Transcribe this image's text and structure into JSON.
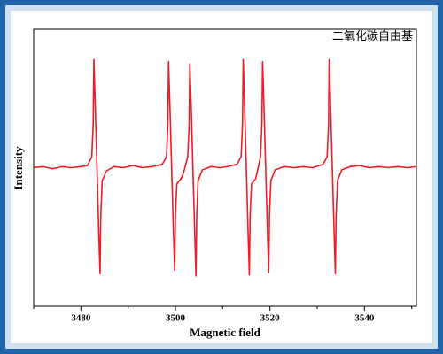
{
  "chart_data": {
    "type": "line",
    "xlabel": "Magnetic field",
    "ylabel": "Intensity",
    "annotation": "二氧化碳自由基",
    "xlim": [
      3470,
      3551
    ],
    "ylim": [
      -1.28,
      1.28
    ],
    "xticks": [
      3480,
      3500,
      3520,
      3540
    ],
    "xminorticks": [
      3470,
      3490,
      3510,
      3530,
      3550
    ],
    "series": [
      {
        "color": "#ee1c25",
        "x": [
          3470,
          3472,
          3474,
          3476,
          3478,
          3480,
          3481.4,
          3482.3,
          3482.6,
          3482.75,
          3483.05,
          3483.4,
          3483.75,
          3484.05,
          3484.2,
          3484.5,
          3485.4,
          3487,
          3489,
          3491,
          3493,
          3495,
          3497.2,
          3498.1,
          3498.4,
          3498.55,
          3498.85,
          3499.2,
          3499.55,
          3499.85,
          3500.0,
          3500.3,
          3501.2,
          3501.7,
          3502.6,
          3502.9,
          3503.05,
          3503.35,
          3503.7,
          3504.05,
          3504.35,
          3504.5,
          3504.8,
          3505.7,
          3507.5,
          3509.5,
          3511,
          3513.0,
          3513.9,
          3514.2,
          3514.35,
          3514.65,
          3515.0,
          3515.35,
          3515.65,
          3515.8,
          3516.1,
          3517.0,
          3518.0,
          3518.3,
          3518.45,
          3518.75,
          3519.1,
          3519.45,
          3519.75,
          3519.9,
          3520.2,
          3521.1,
          3523,
          3525,
          3527,
          3529,
          3531.2,
          3532.1,
          3532.4,
          3532.55,
          3532.85,
          3533.2,
          3533.55,
          3533.85,
          3534.0,
          3534.3,
          3535.2,
          3537,
          3539,
          3541,
          3543,
          3545,
          3547,
          3549,
          3551
        ],
        "values": [
          0.0,
          0.01,
          -0.01,
          0.01,
          0.0,
          0.01,
          0.02,
          0.1,
          0.4,
          1.0,
          0.55,
          0,
          -0.55,
          -0.98,
          -0.45,
          -0.12,
          -0.03,
          0.01,
          0.0,
          0.02,
          0.0,
          0.01,
          0.03,
          0.1,
          0.4,
          0.98,
          0.55,
          0,
          -0.55,
          -0.95,
          -0.45,
          -0.15,
          -0.1,
          -0.05,
          0.1,
          0.4,
          0.96,
          0.55,
          0,
          -0.55,
          -1.0,
          -0.45,
          -0.12,
          -0.02,
          0.01,
          0.0,
          0.01,
          0.03,
          0.1,
          0.4,
          1.0,
          0.55,
          0,
          -0.55,
          -0.99,
          -0.45,
          -0.15,
          -0.1,
          0.1,
          0.4,
          0.98,
          0.55,
          0,
          -0.55,
          -0.97,
          -0.45,
          -0.12,
          -0.02,
          0.01,
          0.0,
          0.01,
          0.0,
          0.03,
          0.1,
          0.4,
          1.0,
          0.55,
          0,
          -0.55,
          -0.98,
          -0.45,
          -0.12,
          -0.02,
          0.01,
          0.02,
          0.0,
          0.01,
          0.0,
          0.01,
          0.0,
          0.01
        ]
      }
    ]
  }
}
